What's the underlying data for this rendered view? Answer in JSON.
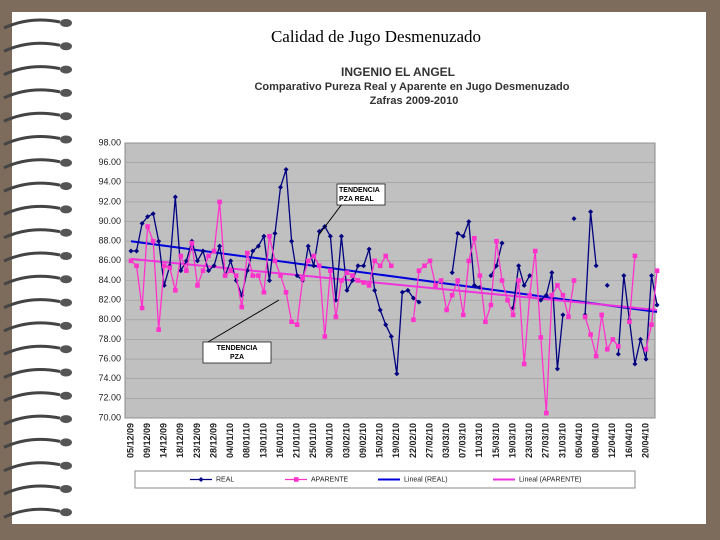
{
  "slide_title": "Calidad de Jugo Desmenuzado",
  "chart_data": {
    "type": "line",
    "title": [
      "INGENIO EL ANGEL",
      "Comparativo Pureza Real y Aparente en Jugo Desmenuzado",
      "Zafras 2009-2010"
    ],
    "categories": [
      "05/12/09",
      null,
      null,
      "09/12/09",
      null,
      null,
      "14/12/09",
      null,
      null,
      "18/12/09",
      null,
      null,
      "23/12/09",
      null,
      null,
      "28/12/09",
      null,
      null,
      "04/01/10",
      null,
      null,
      "08/01/10",
      null,
      null,
      "13/01/10",
      null,
      null,
      "16/01/10",
      null,
      null,
      "21/01/10",
      null,
      null,
      "25/01/10",
      null,
      null,
      "30/01/10",
      null,
      null,
      "03/02/10",
      null,
      null,
      "09/02/10",
      null,
      null,
      "15/02/10",
      null,
      null,
      "19/02/10",
      null,
      null,
      "22/02/10",
      null,
      null,
      "27/02/10",
      null,
      null,
      "03/03/10",
      null,
      null,
      "07/03/10",
      null,
      null,
      "11/03/10",
      null,
      null,
      "15/03/10",
      null,
      null,
      "19/03/10",
      null,
      null,
      "23/03/10",
      null,
      null,
      "27/03/10",
      null,
      null,
      "31/03/10",
      null,
      null,
      "05/04/10",
      null,
      null,
      "08/04/10",
      null,
      null,
      "12/04/10",
      null,
      null,
      "16/04/10",
      null,
      null,
      "20/04/10",
      null,
      null
    ],
    "series": [
      {
        "name": "REAL",
        "color": "#000080",
        "marker": "diamond",
        "values": [
          87,
          87,
          89.8,
          90.5,
          90.8,
          88,
          83.5,
          85.5,
          92.5,
          85,
          86,
          88,
          86,
          87,
          85,
          85.5,
          87.5,
          84.5,
          86,
          84,
          82.5,
          85,
          87,
          87.5,
          88.5,
          84,
          88.8,
          93.5,
          95.3,
          88,
          84.5,
          84,
          87.5,
          85.5,
          89,
          89.5,
          88.5,
          82,
          88.5,
          83,
          84,
          85.5,
          85.5,
          87.2,
          83,
          81,
          79.5,
          78.3,
          74.5,
          82.8,
          83,
          82.2,
          81.8,
          null,
          null,
          null,
          null,
          null,
          84.8,
          88.8,
          88.5,
          90,
          83.5,
          83.3,
          null,
          84.5,
          85.5,
          87.8,
          null,
          81.2,
          85.5,
          83.5,
          84.5,
          null,
          82,
          82.5,
          84.8,
          75,
          80.5,
          null,
          90.3,
          null,
          80.5,
          91,
          85.5,
          null,
          83.5,
          null,
          76.5,
          84.5,
          80,
          75.5,
          78,
          76,
          84.5,
          81.5
        ]
      },
      {
        "name": "APARENTE",
        "color": "#ff33cc",
        "marker": "square",
        "values": [
          86,
          85.5,
          81.2,
          89.5,
          88,
          79,
          85.5,
          85.3,
          83,
          86.5,
          85,
          87.8,
          83.5,
          85,
          86.5,
          87,
          92,
          84.5,
          85,
          84.5,
          81.3,
          86.8,
          84.5,
          84.5,
          82.8,
          88.5,
          86,
          84.5,
          82.8,
          79.8,
          79.5,
          84.2,
          86,
          86.5,
          85.5,
          78.3,
          85,
          80.3,
          84,
          84.8,
          84.5,
          84,
          83.8,
          83.5,
          86,
          85.5,
          86.5,
          85.5,
          null,
          null,
          null,
          80,
          85,
          85.5,
          86,
          83.5,
          84,
          81,
          82.5,
          84,
          80.5,
          86,
          88.3,
          84.5,
          79.8,
          81.5,
          88,
          84,
          82,
          80.5,
          84,
          75.5,
          82.5,
          87,
          78.2,
          70.5,
          82.5,
          83.5,
          82.5,
          80.3,
          84,
          null,
          80.3,
          78.5,
          76.3,
          80.5,
          77,
          78,
          77.3,
          null,
          79.8,
          86.5,
          null,
          77,
          79.5,
          85
        ]
      }
    ],
    "trendlines": [
      {
        "name": "Lineal (REAL)",
        "color": "#0000dd",
        "values": [
          88,
          80.8
        ]
      },
      {
        "name": "Lineal (APARENTE)",
        "color": "#ee33dd",
        "values": [
          86.2,
          81
        ]
      }
    ],
    "annotations": [
      [
        "TENDENCIA",
        "PZA REAL"
      ],
      [
        "TENDENCIA",
        "PZA"
      ]
    ],
    "ylim": [
      70,
      98
    ],
    "yticks": [
      {
        "value": 70,
        "label": "70.00"
      },
      {
        "value": 72,
        "label": "72.00"
      },
      {
        "value": 74,
        "label": "74.00"
      },
      {
        "value": 76,
        "label": "76.00"
      },
      {
        "value": 78,
        "label": "78.00"
      },
      {
        "value": 80,
        "label": "80.00"
      },
      {
        "value": 82,
        "label": "82.00"
      },
      {
        "value": 84,
        "label": "84.00"
      },
      {
        "value": 86,
        "label": "86.00"
      },
      {
        "value": 88,
        "label": "88.00"
      },
      {
        "value": 90,
        "label": "90.00"
      },
      {
        "value": 92,
        "label": "92.00"
      },
      {
        "value": 94,
        "label": "94.00"
      },
      {
        "value": 96,
        "label": "96.00"
      },
      {
        "value": 98,
        "label": "98.00"
      }
    ],
    "grid": true
  }
}
